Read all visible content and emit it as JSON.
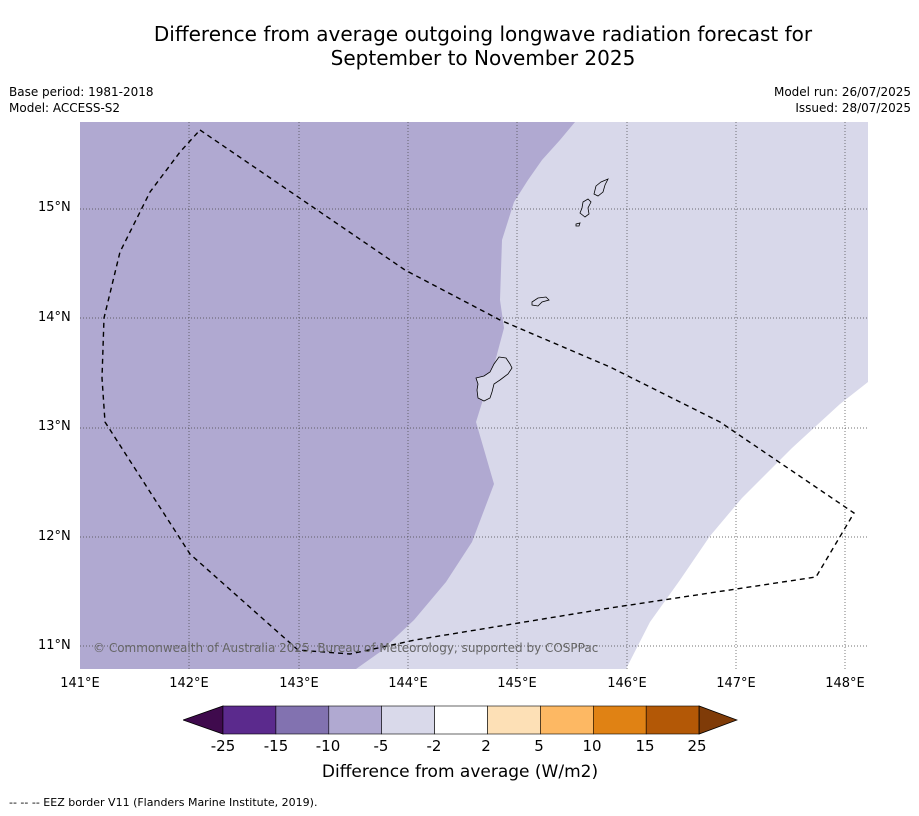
{
  "title_line1": "Difference from average outgoing longwave radiation forecast for",
  "title_line2": "September to November 2025",
  "base_period": "Base period: 1981-2018",
  "model": "Model: ACCESS-S2",
  "model_run": "Model run: 26/07/2025",
  "issued": "Issued: 28/07/2025",
  "credit": "© Commonwealth of Australia 2025, Bureau of Meteorology, supported by COSPPac",
  "lat_labels": [
    "15°N",
    "14°N",
    "13°N",
    "12°N",
    "11°N"
  ],
  "lon_labels": [
    "141°E",
    "142°E",
    "143°E",
    "144°E",
    "145°E",
    "146°E",
    "147°E",
    "148°E"
  ],
  "colorbar": {
    "label": "Difference from average (W/m2)",
    "ticks": [
      "-25",
      "-15",
      "-10",
      "-5",
      "-2",
      "2",
      "5",
      "10",
      "15",
      "25"
    ],
    "colors": [
      "#3f0a4d",
      "#5b2a8d",
      "#8272b0",
      "#b0a9d1",
      "#d9d9ea",
      "#ffffff",
      "#fde0b6",
      "#fdb863",
      "#e08214",
      "#b35806",
      "#7f3b08"
    ]
  },
  "footnote": "--  --  -- EEZ border V11 (Flanders Marine Institute, 2019)."
}
